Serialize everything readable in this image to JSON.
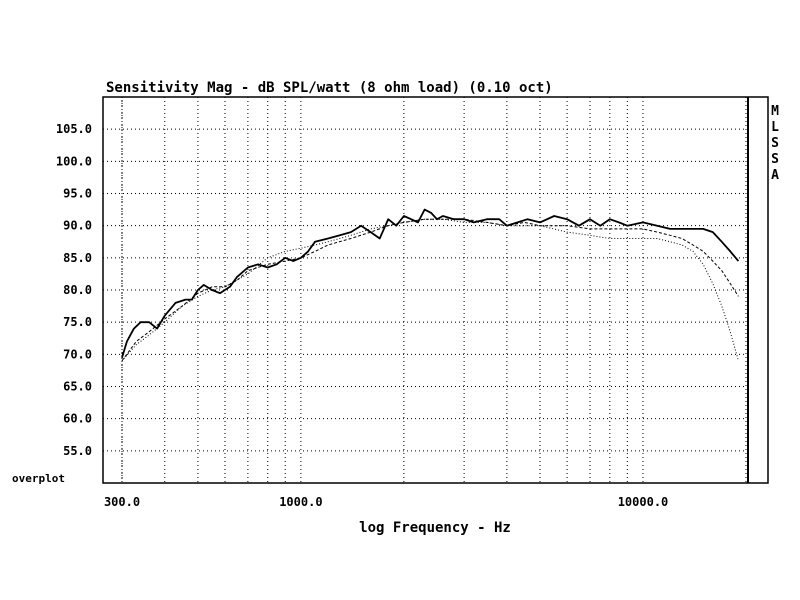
{
  "chart_data": {
    "type": "line",
    "title": "Sensitivity Mag - dB SPL/watt (8 ohm load) (0.10 oct)",
    "xlabel": "log Frequency - Hz",
    "ylabel": "",
    "x_scale": "log",
    "xlim": [
      270,
      20000
    ],
    "ylim": [
      50,
      110
    ],
    "x_ticks": [
      {
        "value": 300,
        "label": "300.0"
      },
      {
        "value": 1000,
        "label": "1000.0"
      },
      {
        "value": 10000,
        "label": "10000.0"
      }
    ],
    "y_ticks": [
      {
        "value": 105,
        "label": "105.0"
      },
      {
        "value": 100,
        "label": "100.0"
      },
      {
        "value": 95,
        "label": "95.0"
      },
      {
        "value": 90,
        "label": "90.0"
      },
      {
        "value": 85,
        "label": "85.0"
      },
      {
        "value": 80,
        "label": "80.0"
      },
      {
        "value": 75,
        "label": "75.0"
      },
      {
        "value": 70,
        "label": "70.0"
      },
      {
        "value": 65,
        "label": "65.0"
      },
      {
        "value": 60,
        "label": "60.0"
      },
      {
        "value": 55,
        "label": "55.0"
      }
    ],
    "bottom_left_label": "overplot",
    "side_label": [
      "M",
      "L",
      "S",
      "S",
      "A"
    ],
    "grid": "dotted",
    "series": [
      {
        "style": "solid",
        "points": [
          [
            300,
            69.5
          ],
          [
            310,
            72
          ],
          [
            325,
            74
          ],
          [
            340,
            75
          ],
          [
            360,
            75
          ],
          [
            380,
            74
          ],
          [
            400,
            76
          ],
          [
            430,
            78
          ],
          [
            460,
            78.5
          ],
          [
            480,
            78.5
          ],
          [
            500,
            80
          ],
          [
            520,
            80.8
          ],
          [
            550,
            80
          ],
          [
            580,
            79.5
          ],
          [
            620,
            80.5
          ],
          [
            650,
            82
          ],
          [
            700,
            83.5
          ],
          [
            750,
            84
          ],
          [
            800,
            83.5
          ],
          [
            850,
            84
          ],
          [
            900,
            85
          ],
          [
            950,
            84.5
          ],
          [
            1000,
            85
          ],
          [
            1050,
            86
          ],
          [
            1100,
            87.5
          ],
          [
            1200,
            88
          ],
          [
            1300,
            88.5
          ],
          [
            1400,
            89
          ],
          [
            1500,
            90
          ],
          [
            1600,
            89
          ],
          [
            1700,
            88
          ],
          [
            1800,
            91
          ],
          [
            1900,
            90
          ],
          [
            2000,
            91.5
          ],
          [
            2100,
            91
          ],
          [
            2200,
            90.5
          ],
          [
            2300,
            92.5
          ],
          [
            2400,
            92
          ],
          [
            2500,
            91
          ],
          [
            2600,
            91.5
          ],
          [
            2800,
            91
          ],
          [
            3000,
            91
          ],
          [
            3200,
            90.5
          ],
          [
            3500,
            91
          ],
          [
            3800,
            91
          ],
          [
            4000,
            90
          ],
          [
            4300,
            90.5
          ],
          [
            4600,
            91
          ],
          [
            5000,
            90.5
          ],
          [
            5500,
            91.5
          ],
          [
            6000,
            91
          ],
          [
            6500,
            90
          ],
          [
            7000,
            91
          ],
          [
            7500,
            90
          ],
          [
            8000,
            91
          ],
          [
            8500,
            90.5
          ],
          [
            9000,
            90
          ],
          [
            10000,
            90.5
          ],
          [
            11000,
            90
          ],
          [
            12000,
            89.5
          ],
          [
            13000,
            89.5
          ],
          [
            14000,
            89.5
          ],
          [
            15000,
            89.5
          ],
          [
            16000,
            89
          ],
          [
            17000,
            87.5
          ],
          [
            18000,
            86
          ],
          [
            19000,
            84.5
          ]
        ]
      },
      {
        "style": "dashed",
        "points": [
          [
            300,
            69
          ],
          [
            330,
            72
          ],
          [
            360,
            73.5
          ],
          [
            400,
            75.5
          ],
          [
            450,
            77.5
          ],
          [
            500,
            79.5
          ],
          [
            550,
            80.5
          ],
          [
            600,
            80.5
          ],
          [
            650,
            81.5
          ],
          [
            700,
            83
          ],
          [
            800,
            84
          ],
          [
            900,
            84.5
          ],
          [
            1000,
            85
          ],
          [
            1100,
            86
          ],
          [
            1200,
            87
          ],
          [
            1400,
            88
          ],
          [
            1600,
            89
          ],
          [
            1800,
            90
          ],
          [
            2000,
            90.5
          ],
          [
            2300,
            91
          ],
          [
            2600,
            91
          ],
          [
            3000,
            91
          ],
          [
            3500,
            90.5
          ],
          [
            4000,
            90
          ],
          [
            4500,
            90.5
          ],
          [
            5000,
            90
          ],
          [
            6000,
            90
          ],
          [
            7000,
            89.5
          ],
          [
            8000,
            89.5
          ],
          [
            9000,
            89.5
          ],
          [
            10000,
            89.5
          ],
          [
            11000,
            89
          ],
          [
            12000,
            88.5
          ],
          [
            13000,
            88
          ],
          [
            14000,
            87
          ],
          [
            15000,
            86
          ],
          [
            16000,
            84.5
          ],
          [
            17000,
            83
          ],
          [
            18000,
            81
          ],
          [
            19000,
            79
          ]
        ]
      },
      {
        "style": "dotted",
        "points": [
          [
            300,
            69
          ],
          [
            330,
            71.5
          ],
          [
            360,
            73
          ],
          [
            400,
            75
          ],
          [
            450,
            77.5
          ],
          [
            500,
            79
          ],
          [
            550,
            80
          ],
          [
            600,
            80.5
          ],
          [
            700,
            82.5
          ],
          [
            800,
            85
          ],
          [
            900,
            86
          ],
          [
            1000,
            86.5
          ],
          [
            1100,
            87
          ],
          [
            1200,
            87.5
          ],
          [
            1400,
            88.5
          ],
          [
            1600,
            89.5
          ],
          [
            1800,
            90
          ],
          [
            2000,
            90.5
          ],
          [
            2300,
            91
          ],
          [
            2600,
            91
          ],
          [
            3000,
            90.5
          ],
          [
            3500,
            90.5
          ],
          [
            4000,
            90
          ],
          [
            5000,
            90
          ],
          [
            6000,
            89
          ],
          [
            7000,
            88.5
          ],
          [
            8000,
            88
          ],
          [
            9000,
            88
          ],
          [
            10000,
            88
          ],
          [
            11000,
            88
          ],
          [
            12000,
            87.5
          ],
          [
            13000,
            87
          ],
          [
            14000,
            86
          ],
          [
            15000,
            84
          ],
          [
            16000,
            81
          ],
          [
            17000,
            77.5
          ],
          [
            18000,
            73.5
          ],
          [
            19000,
            69
          ]
        ]
      }
    ]
  }
}
